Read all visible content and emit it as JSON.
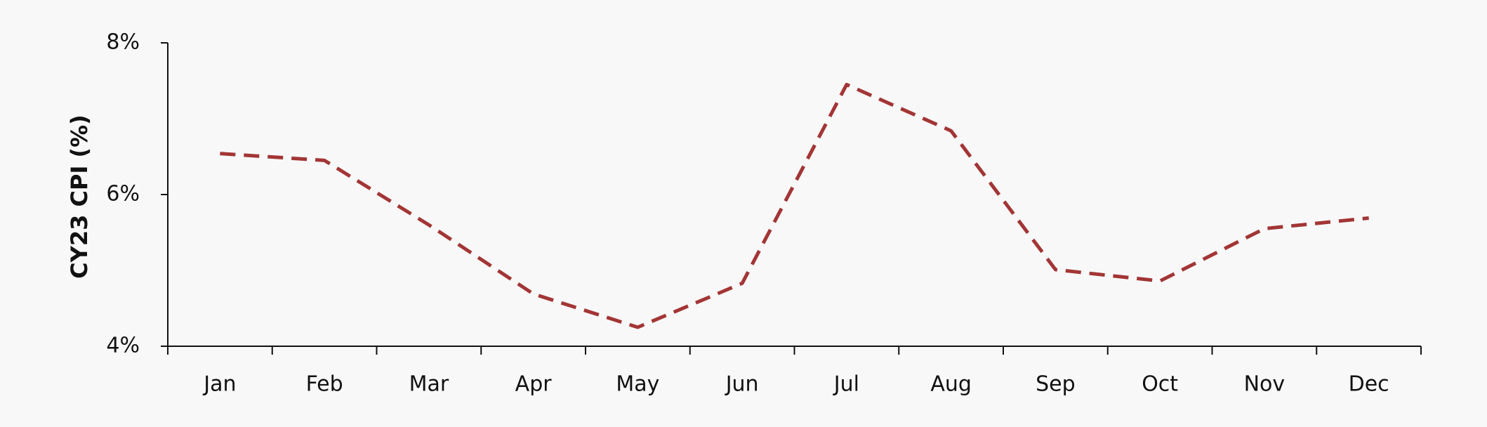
{
  "chart_data": {
    "type": "line",
    "ylabel": "CY23 CPI (%)",
    "categories": [
      "Jan",
      "Feb",
      "Mar",
      "Apr",
      "May",
      "Jun",
      "Jul",
      "Aug",
      "Sep",
      "Oct",
      "Nov",
      "Dec"
    ],
    "series": [
      {
        "color": "#a33535",
        "values": [
          6.54,
          6.45,
          5.6,
          4.69,
          4.25,
          4.83,
          7.45,
          6.84,
          5.01,
          4.86,
          5.55,
          5.69
        ]
      }
    ],
    "ylim": [
      4,
      8
    ],
    "yticks": [
      {
        "value": 4,
        "label": "4%"
      },
      {
        "value": 6,
        "label": "6%"
      },
      {
        "value": 8,
        "label": "8%"
      }
    ]
  }
}
